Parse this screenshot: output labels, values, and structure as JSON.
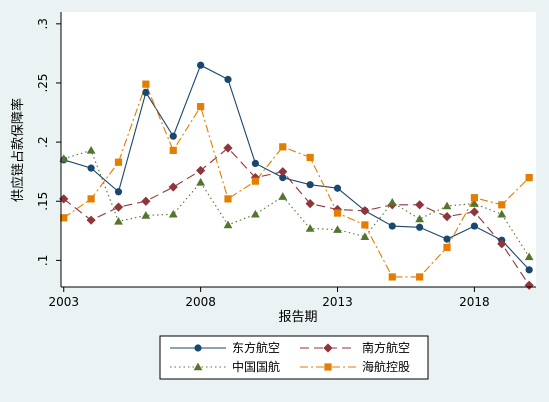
{
  "chart_data": {
    "type": "line",
    "title": "",
    "xlabel": "报告期",
    "ylabel": "供应链占款保障率",
    "xlim": [
      2003,
      2020
    ],
    "ylim": [
      0.1,
      0.3
    ],
    "x_ticks": [
      2003,
      2008,
      2013,
      2018
    ],
    "x_tick_labels": [
      "2003",
      "2008",
      "2013",
      "2018"
    ],
    "y_ticks": [
      0.1,
      0.15,
      0.2,
      0.25,
      0.3
    ],
    "y_tick_labels": [
      ".1",
      ".15",
      ".2",
      ".25",
      ".3"
    ],
    "grid": false,
    "legend_position": "bottom",
    "x": [
      2003,
      2004,
      2005,
      2006,
      2007,
      2008,
      2009,
      2010,
      2011,
      2012,
      2013,
      2014,
      2015,
      2016,
      2017,
      2018,
      2019,
      2020
    ],
    "series": [
      {
        "name": "东方航空",
        "color": "#1a476f",
        "marker": "circle",
        "dash": "solid",
        "values": [
          0.185,
          0.178,
          0.158,
          0.242,
          0.205,
          0.265,
          0.253,
          0.182,
          0.17,
          0.164,
          0.161,
          0.142,
          0.129,
          0.128,
          0.118,
          0.129,
          0.117,
          0.092
        ]
      },
      {
        "name": "南方航空",
        "color": "#90353b",
        "marker": "diamond",
        "dash": "long-dash",
        "values": [
          0.152,
          0.134,
          0.145,
          0.15,
          0.162,
          0.176,
          0.195,
          0.17,
          0.175,
          0.148,
          0.143,
          0.142,
          0.147,
          0.147,
          0.137,
          0.141,
          0.114,
          0.079
        ]
      },
      {
        "name": "中国国航",
        "color": "#55752f",
        "marker": "triangle",
        "dash": "dotted",
        "values": [
          0.186,
          0.193,
          0.133,
          0.138,
          0.139,
          0.166,
          0.13,
          0.139,
          0.154,
          0.127,
          0.126,
          0.12,
          0.149,
          0.135,
          0.146,
          0.148,
          0.139,
          0.103
        ]
      },
      {
        "name": "海航控股",
        "color": "#e37e00",
        "marker": "square",
        "dash": "dash-dot",
        "values": [
          0.136,
          0.152,
          0.183,
          0.249,
          0.193,
          0.23,
          0.152,
          0.167,
          0.196,
          0.187,
          0.14,
          0.13,
          0.086,
          0.086,
          0.111,
          0.153,
          0.147,
          0.17
        ]
      }
    ]
  }
}
